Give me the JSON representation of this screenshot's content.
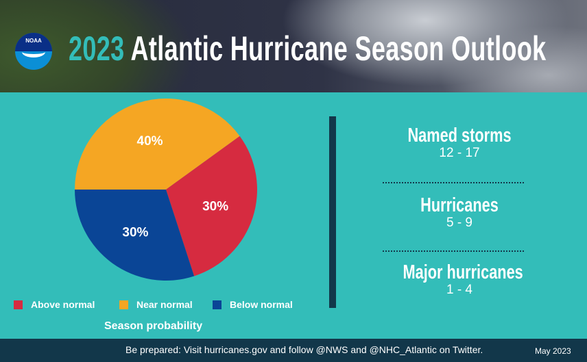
{
  "header": {
    "logo_text": "NOAA",
    "title_year": "2023",
    "title_rest": " Atlantic Hurricane Season Outlook"
  },
  "chart_data": {
    "type": "pie",
    "title": "Season probability",
    "categories": [
      "Above normal",
      "Near normal",
      "Below normal"
    ],
    "values": [
      30,
      40,
      30
    ],
    "labels": [
      "30%",
      "40%",
      "30%"
    ],
    "colors": [
      "#d62b40",
      "#f5a623",
      "#0a4596"
    ],
    "legend": "bottom"
  },
  "stats": [
    {
      "label": "Named storms",
      "value": "12 - 17"
    },
    {
      "label": "Hurricanes",
      "value": "5 - 9"
    },
    {
      "label": "Major hurricanes",
      "value": "1 - 4"
    }
  ],
  "footer": {
    "message": "Be prepared: Visit hurricanes.gov and follow @NWS and @NHC_Atlantic on Twitter.",
    "date": "May 2023"
  }
}
